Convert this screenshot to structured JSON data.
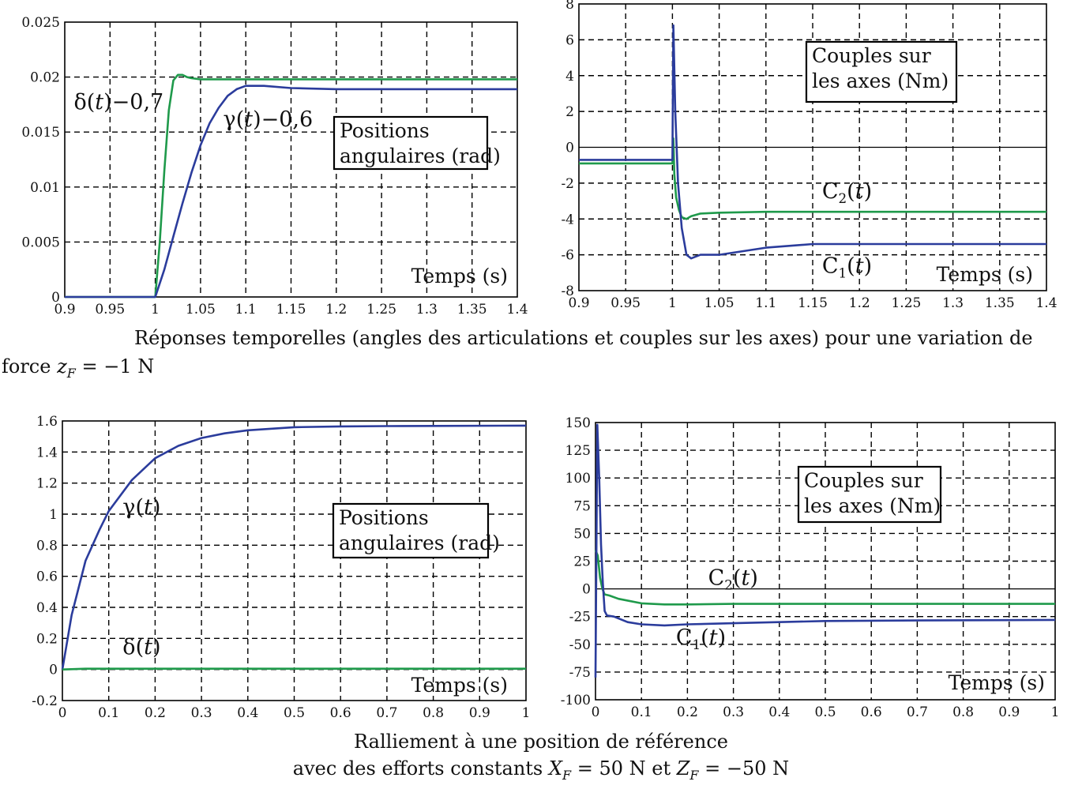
{
  "colors": {
    "green": "#1f9a4b",
    "blue": "#2b3c9c",
    "grid": "#000000",
    "axis": "#000000"
  },
  "captions": {
    "top_line1": "Réponses temporelles (angles des articulations et couples sur les axes) pour une variation de",
    "top_line2_prefix": "force ",
    "top_line2_var": "z",
    "top_line2_sub": "F",
    "top_line2_suffix": " = −1 N",
    "bottom_line1": "Ralliement à une position de référence",
    "bottom_line2_prefix": "avec des efforts constants ",
    "bottom_line2_var1": "X",
    "bottom_line2_sub1": "F",
    "bottom_line2_mid": " = 50 N et ",
    "bottom_line2_var2": "Z",
    "bottom_line2_sub2": "F",
    "bottom_line2_suffix": " = −50 N"
  },
  "chart_data": [
    {
      "id": "c1",
      "type": "line",
      "grid": true,
      "xlim": [
        0.9,
        1.4
      ],
      "ylim": [
        0,
        0.025
      ],
      "xticks": [
        "0.9",
        "0.95",
        "1",
        "1.05",
        "1.1",
        "1.15",
        "1.2",
        "1.25",
        "1.3",
        "1.35",
        "1.4"
      ],
      "yticks": [
        "0",
        "0.005",
        "0.01",
        "0.015",
        "0.02",
        "0.025"
      ],
      "legend_box": [
        "Positions",
        "angulaires (rad)"
      ],
      "xlabel": "Temps (s)",
      "zero_line": false,
      "series": [
        {
          "label": "δ(t)−0,7",
          "color": "green",
          "x": [
            0.9,
            1.0,
            1.005,
            1.01,
            1.015,
            1.02,
            1.025,
            1.03,
            1.035,
            1.04,
            1.05,
            1.1,
            1.2,
            1.3,
            1.4
          ],
          "y": [
            0,
            0,
            0.005,
            0.0115,
            0.017,
            0.0197,
            0.0202,
            0.0202,
            0.02,
            0.0199,
            0.0198,
            0.0198,
            0.0198,
            0.0198,
            0.0198
          ]
        },
        {
          "label": "γ(t)−0,6",
          "color": "blue",
          "x": [
            0.9,
            1.0,
            1.01,
            1.02,
            1.03,
            1.04,
            1.05,
            1.06,
            1.07,
            1.08,
            1.09,
            1.1,
            1.12,
            1.15,
            1.2,
            1.3,
            1.4
          ],
          "y": [
            0,
            0,
            0.0025,
            0.0055,
            0.0085,
            0.0113,
            0.0138,
            0.0158,
            0.0172,
            0.0183,
            0.0189,
            0.0192,
            0.0192,
            0.019,
            0.0189,
            0.0189,
            0.0189
          ]
        }
      ],
      "annotations": [
        {
          "text": "δ(t)−0,7",
          "x": 0.91,
          "y": 0.0171
        },
        {
          "text": "γ(t)−0,6",
          "x": 1.075,
          "y": 0.0155
        }
      ]
    },
    {
      "id": "c2",
      "type": "line",
      "grid": true,
      "xlim": [
        0.9,
        1.4
      ],
      "ylim": [
        -8,
        8
      ],
      "xticks": [
        "0.9",
        "0.95",
        "1",
        "1.05",
        "1.1",
        "1.15",
        "1.2",
        "1.25",
        "1.3",
        "1.35",
        "1.4"
      ],
      "yticks": [
        "-8",
        "-6",
        "-4",
        "-2",
        "0",
        "2",
        "4",
        "6",
        "8"
      ],
      "legend_box": [
        "Couples sur",
        "les axes (Nm)"
      ],
      "xlabel": "Temps (s)",
      "zero_line": true,
      "series": [
        {
          "label": "C2(t)",
          "color": "green",
          "x": [
            0.9,
            1.0,
            1.001,
            1.002,
            1.004,
            1.007,
            1.01,
            1.015,
            1.02,
            1.03,
            1.05,
            1.1,
            1.2,
            1.3,
            1.4
          ],
          "y": [
            -0.9,
            -0.9,
            0.5,
            -1.5,
            -2.8,
            -3.5,
            -3.9,
            -4.0,
            -3.85,
            -3.7,
            -3.65,
            -3.6,
            -3.6,
            -3.6,
            -3.6
          ]
        },
        {
          "label": "C1(t)",
          "color": "blue",
          "x": [
            0.9,
            1.0,
            1.001,
            1.003,
            1.006,
            1.01,
            1.015,
            1.02,
            1.03,
            1.05,
            1.1,
            1.15,
            1.2,
            1.3,
            1.4
          ],
          "y": [
            -0.7,
            -0.7,
            6.8,
            2.0,
            -2.0,
            -4.5,
            -6.0,
            -6.2,
            -6.0,
            -6.0,
            -5.6,
            -5.4,
            -5.4,
            -5.4,
            -5.4
          ]
        }
      ],
      "annotations": [
        {
          "text": "C2(t)",
          "x": 1.16,
          "y": -2.85
        },
        {
          "text": "C1(t)",
          "x": 1.16,
          "y": -7.0
        }
      ]
    },
    {
      "id": "c3",
      "type": "line",
      "grid": true,
      "xlim": [
        0,
        1
      ],
      "ylim": [
        -0.2,
        1.6
      ],
      "xticks": [
        "0",
        "0.1",
        "0.2",
        "0.3",
        "0.4",
        "0.5",
        "0.6",
        "0.7",
        "0.8",
        "0.9",
        "1"
      ],
      "yticks": [
        "-0.2",
        "0",
        "0.2",
        "0.4",
        "0.6",
        "0.8",
        "1",
        "1.2",
        "1.4",
        "1.6"
      ],
      "legend_box": [
        "Positions",
        "angulaires (rad)"
      ],
      "xlabel": "Temps (s)",
      "zero_line": false,
      "series": [
        {
          "label": "γ(t)",
          "color": "blue",
          "x": [
            0,
            0.02,
            0.05,
            0.08,
            0.1,
            0.15,
            0.2,
            0.25,
            0.3,
            0.35,
            0.4,
            0.5,
            0.6,
            0.7,
            0.8,
            1.0
          ],
          "y": [
            0,
            0.35,
            0.7,
            0.9,
            1.02,
            1.22,
            1.36,
            1.44,
            1.49,
            1.52,
            1.54,
            1.56,
            1.565,
            1.567,
            1.568,
            1.57
          ]
        },
        {
          "label": "δ(t)",
          "color": "green",
          "x": [
            0,
            0.05,
            0.2,
            1.0
          ],
          "y": [
            0,
            0.005,
            0.005,
            0.005
          ]
        }
      ],
      "annotations": [
        {
          "text": "γ(t)",
          "x": 0.13,
          "y": 1.0
        },
        {
          "text": "δ(t)",
          "x": 0.13,
          "y": 0.1
        }
      ]
    },
    {
      "id": "c4",
      "type": "line",
      "grid": true,
      "xlim": [
        0,
        1
      ],
      "ylim": [
        -100,
        150
      ],
      "xticks": [
        "0",
        "0.1",
        "0.2",
        "0.3",
        "0.4",
        "0.5",
        "0.6",
        "0.7",
        "0.8",
        "0.9",
        "1"
      ],
      "yticks": [
        "-100",
        "-75",
        "-50",
        "-25",
        "0",
        "25",
        "50",
        "75",
        "100",
        "125",
        "150"
      ],
      "legend_box": [
        "Couples sur",
        "les axes (Nm)"
      ],
      "xlabel": "Temps (s)",
      "zero_line": true,
      "series": [
        {
          "label": "C2(t)",
          "color": "green",
          "x": [
            0,
            0.005,
            0.01,
            0.015,
            0.02,
            0.03,
            0.05,
            0.1,
            0.15,
            0.2,
            0.3,
            0.5,
            0.7,
            1.0
          ],
          "y": [
            35,
            30,
            10,
            0,
            -5,
            -6,
            -9,
            -13,
            -14,
            -14,
            -13.5,
            -13.5,
            -13.5,
            -13.5
          ]
        },
        {
          "label": "C1(t)",
          "color": "blue",
          "x": [
            0,
            0.004,
            0.008,
            0.012,
            0.016,
            0.02,
            0.025,
            0.04,
            0.07,
            0.1,
            0.15,
            0.2,
            0.3,
            0.5,
            0.7,
            1.0
          ],
          "y": [
            -80,
            148,
            100,
            40,
            5,
            -20,
            -24,
            -25,
            -30,
            -32,
            -33,
            -32,
            -31,
            -29,
            -28.5,
            -28
          ]
        }
      ],
      "annotations": [
        {
          "text": "C2(t)",
          "x": 0.245,
          "y": 3.5
        },
        {
          "text": "C1(t)",
          "x": 0.175,
          "y": -50
        }
      ]
    }
  ]
}
